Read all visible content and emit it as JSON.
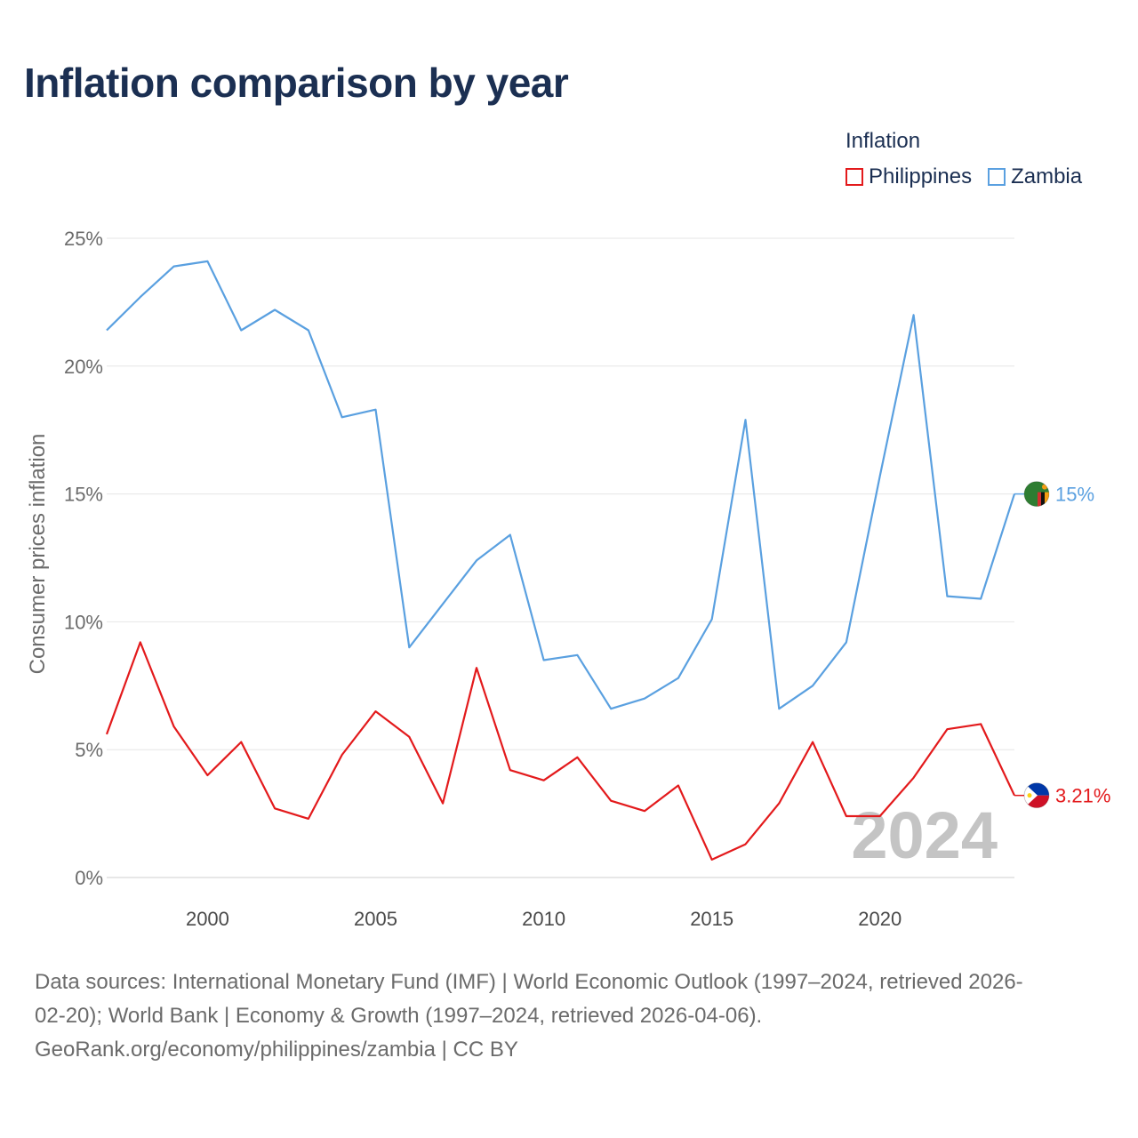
{
  "title": "Inflation comparison by year",
  "legend": {
    "title": "Inflation",
    "items": [
      {
        "label": "Philippines",
        "color": "#e31a1c"
      },
      {
        "label": "Zambia",
        "color": "#5aa0e0"
      }
    ]
  },
  "year_display": "2024",
  "footer": {
    "line1": "Data sources: International Monetary Fund (IMF) | World Economic Outlook (1997–2024, retrieved 2026-",
    "line2": "02-20); World Bank | Economy & Growth (1997–2024, retrieved 2026-04-06).",
    "line3": "GeoRank.org/economy/philippines/zambia | CC BY"
  },
  "chart_data": {
    "type": "line",
    "title": "Inflation comparison by year",
    "xlabel": "",
    "ylabel": "Consumer prices inflation",
    "xlim": [
      1997,
      2024
    ],
    "ylim": [
      0,
      25
    ],
    "x_ticks": [
      2000,
      2005,
      2010,
      2015,
      2020
    ],
    "y_ticks": [
      0,
      5,
      10,
      15,
      20,
      25
    ],
    "y_tick_labels": [
      "0%",
      "5%",
      "10%",
      "15%",
      "20%",
      "25%"
    ],
    "grid": true,
    "legend_position": "top-right",
    "x": [
      1997,
      1998,
      1999,
      2000,
      2001,
      2002,
      2003,
      2004,
      2005,
      2006,
      2007,
      2008,
      2009,
      2010,
      2011,
      2012,
      2013,
      2014,
      2015,
      2016,
      2017,
      2018,
      2019,
      2020,
      2021,
      2022,
      2023,
      2024
    ],
    "series": [
      {
        "name": "Zambia",
        "color": "#5aa0e0",
        "values": [
          21.4,
          22.7,
          23.9,
          24.1,
          21.4,
          22.2,
          21.4,
          18.0,
          18.3,
          9.0,
          10.7,
          12.4,
          13.4,
          8.5,
          8.7,
          6.6,
          7.0,
          7.8,
          10.1,
          17.9,
          6.6,
          7.5,
          9.2,
          15.7,
          22.0,
          11.0,
          10.9,
          15.0
        ],
        "end_label": "15%"
      },
      {
        "name": "Philippines",
        "color": "#e31a1c",
        "values": [
          5.6,
          9.2,
          5.9,
          4.0,
          5.3,
          2.7,
          2.3,
          4.8,
          6.5,
          5.5,
          2.9,
          8.2,
          4.2,
          3.8,
          4.7,
          3.0,
          2.6,
          3.6,
          0.7,
          1.3,
          2.9,
          5.3,
          2.4,
          2.4,
          3.9,
          5.8,
          6.0,
          3.21
        ],
        "end_label": "3.21%"
      }
    ]
  }
}
